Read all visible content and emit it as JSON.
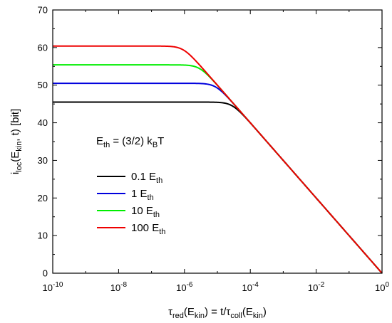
{
  "chart_data": {
    "type": "line",
    "x_scale": "log",
    "xlim": [
      1e-10,
      1
    ],
    "ylim": [
      0,
      70
    ],
    "x_ticks": [
      {
        "value": 1e-10,
        "base": "10",
        "exp": "-10"
      },
      {
        "value": 1e-08,
        "base": "10",
        "exp": "-8"
      },
      {
        "value": 1e-06,
        "base": "10",
        "exp": "-6"
      },
      {
        "value": 0.0001,
        "base": "10",
        "exp": "-4"
      },
      {
        "value": 0.01,
        "base": "10",
        "exp": "-2"
      },
      {
        "value": 1,
        "base": "10",
        "exp": "0"
      }
    ],
    "y_ticks": [
      0,
      10,
      20,
      30,
      40,
      50,
      60,
      70
    ],
    "xlabel": {
      "p1": "τ",
      "p1sub": "red",
      "p2": "(E",
      "p2sub": "kin",
      "p3": ") = t/τ",
      "p3sub": "coll",
      "p4": "(E",
      "p4sub": "kin",
      "p5": ")"
    },
    "ylabel": {
      "p1": "i",
      "p1sub": "loc",
      "p2": "(E",
      "p2sub": "kin",
      "p3": ", t) [bit]"
    },
    "annotation": {
      "p1": "E",
      "p1sub": "th",
      "p2": " = (3/2) k",
      "p2sub": "B",
      "p3": "T"
    },
    "legend_placement": "left-middle",
    "grid": false,
    "asymptote_slope_bits_per_decade": -10,
    "series": [
      {
        "label": "0.1 E",
        "sub": "th",
        "color": "#000000",
        "plateau": 45.5
      },
      {
        "label": "1 E",
        "sub": "th",
        "color": "#0000dd",
        "plateau": 50.5
      },
      {
        "label": "10 E",
        "sub": "th",
        "color": "#00ee00",
        "plateau": 55.4
      },
      {
        "label": "100 E",
        "sub": "th",
        "color": "#ee0000",
        "plateau": 60.4
      }
    ]
  }
}
